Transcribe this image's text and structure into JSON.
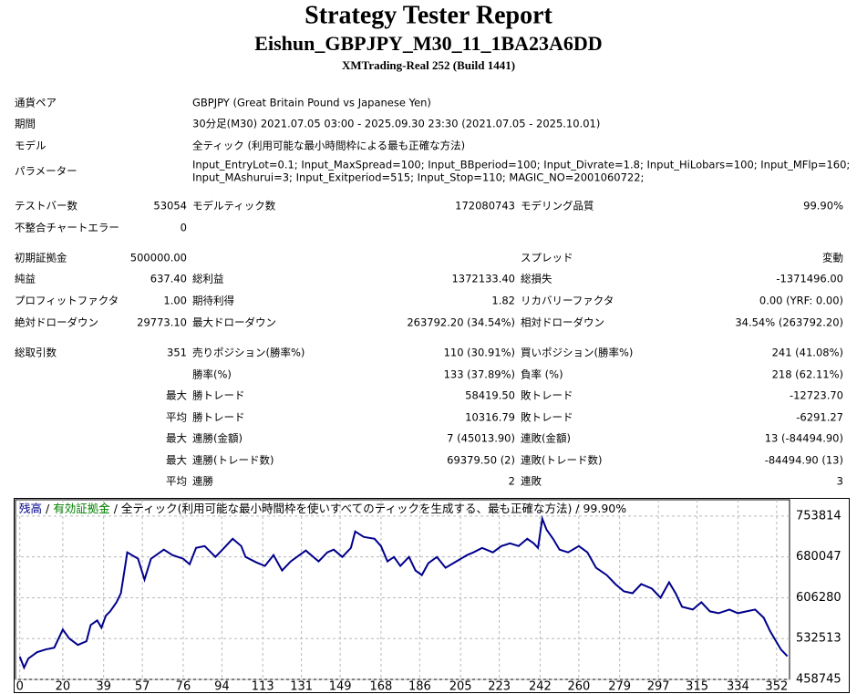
{
  "header": {
    "title": "Strategy Tester Report",
    "subtitle": "Eishun_GBPJPY_M30_11_1BA23A6DD",
    "server": "XMTrading-Real 252 (Build 1441)"
  },
  "info": [
    {
      "label": "通貨ペア",
      "value": [
        "GBPJPY (Great Britain Pound vs Japanese Yen)"
      ]
    },
    {
      "label": "期間",
      "value": [
        "30分足(M30) 2021.07.05 03:00 - 2025.09.30 23:30 (2021.07.05 - 2025.10.01)"
      ]
    },
    {
      "label": "モデル",
      "value": [
        "全ティック (利用可能な最小時間枠による最も正確な方法)"
      ]
    },
    {
      "label": "パラメーター",
      "value": [
        "Input_EntryLot=0.1; Input_MaxSpread=100; Input_BBperiod=100; Input_Divrate=1.8; Input_HiLobars=100; Input_MFlp=160;",
        "Input_MAshurui=3; Input_Exitperiod=515; Input_Stop=110; MAGIC_NO=2001060722;"
      ]
    }
  ],
  "stats": [
    [
      "テストバー数",
      "53054",
      "モデルティック数",
      "172080743",
      "モデリング品質",
      "99.90%"
    ],
    [
      "不整合チャートエラー",
      "0",
      null,
      null,
      null,
      null
    ],
    [
      "初期証拠金",
      "500000.00",
      null,
      null,
      "スプレッド",
      "変動"
    ],
    [
      "純益",
      "637.40",
      "総利益",
      "1372133.40",
      "総損失",
      "-1371496.00"
    ],
    [
      "プロフィットファクタ",
      "1.00",
      "期待利得",
      "1.82",
      "リカバリーファクタ",
      "0.00 (YRF: 0.00)"
    ],
    [
      "絶対ドローダウン",
      "29773.10",
      "最大ドローダウン",
      "263792.20 (34.54%)",
      "相対ドローダウン",
      "34.54% (263792.20)"
    ],
    [
      "総取引数",
      "351",
      "売りポジション(勝率%)",
      "110 (30.91%)",
      "買いポジション(勝率%)",
      "241 (41.08%)"
    ],
    [
      null,
      null,
      "勝率(%)",
      "133 (37.89%)",
      "負率 (%)",
      "218 (62.11%)"
    ],
    [
      null,
      "最大",
      "勝トレード",
      "58419.50",
      "敗トレード",
      "-12723.70"
    ],
    [
      null,
      "平均",
      "勝トレード",
      "10316.79",
      "敗トレード",
      "-6291.27"
    ],
    [
      null,
      "最大",
      "連勝(金額)",
      "7 (45013.90)",
      "連敗(金額)",
      "13 (-84494.90)"
    ],
    [
      null,
      "最大",
      "連勝(トレード数)",
      "69379.50 (2)",
      "連敗(トレード数)",
      "-84494.90 (13)"
    ],
    [
      null,
      "平均",
      "連勝",
      "2",
      "連敗",
      "3"
    ]
  ],
  "chart_data": {
    "type": "line",
    "x": [
      0,
      2,
      4,
      8,
      12,
      16,
      20,
      23,
      27,
      31,
      33,
      36,
      38,
      40,
      42,
      45,
      47,
      49,
      50,
      55,
      58,
      61,
      67,
      71,
      76,
      79,
      82,
      86,
      91,
      95,
      99,
      103,
      105,
      110,
      114,
      118,
      122,
      126,
      133,
      139,
      143,
      146,
      150,
      154,
      156,
      160,
      165,
      168,
      171,
      174,
      177,
      181,
      184,
      187,
      190,
      194,
      198,
      203,
      208,
      211,
      215,
      220,
      224,
      228,
      232,
      236,
      239,
      241,
      243,
      245,
      248,
      251,
      255,
      260,
      264,
      268,
      273,
      277,
      281,
      285,
      289,
      294,
      298,
      302,
      305,
      308,
      313,
      317,
      321,
      325,
      330,
      334,
      338,
      342,
      346,
      349,
      351,
      354,
      357
    ],
    "series": [
      {
        "name": "残高",
        "color": "#00008b",
        "values": [
          500000,
          480000,
          496400,
          507900,
          512800,
          516100,
          548900,
          532500,
          521000,
          527600,
          557100,
          565300,
          552200,
          573500,
          581700,
          598100,
          614500,
          663700,
          688200,
          676800,
          639100,
          676800,
          693200,
          683300,
          676800,
          666900,
          696400,
          699700,
          680000,
          696400,
          712800,
          699700,
          680000,
          670200,
          663700,
          683300,
          655500,
          671900,
          691500,
          671900,
          688200,
          693200,
          680000,
          696400,
          726000,
          716100,
          712800,
          699700,
          671900,
          680000,
          663700,
          680000,
          655500,
          647300,
          668600,
          680000,
          660400,
          671900,
          683300,
          688200,
          696400,
          688200,
          699700,
          704600,
          699700,
          712800,
          704600,
          696400,
          748900,
          729200,
          712800,
          693200,
          688200,
          699700,
          688200,
          660400,
          647300,
          630900,
          617800,
          614500,
          630900,
          622700,
          606300,
          634200,
          614500,
          589900,
          585000,
          598100,
          581700,
          578400,
          585000,
          578400,
          581700,
          585000,
          570200,
          545600,
          532500,
          512800,
          500600
        ]
      }
    ],
    "legend_extra": [
      {
        "text": "/",
        "color": "#000000"
      },
      {
        "text": "有効証拠金",
        "color": "#008000"
      },
      {
        "text": "/ 全ティック(利用可能な最小時間枠を使いすべてのティックを生成する、最も正確な方法) / 99.90%",
        "color": "#000000"
      }
    ],
    "xlim": [
      -2,
      358
    ],
    "xticks": [
      0,
      20,
      39,
      57,
      76,
      94,
      113,
      131,
      149,
      168,
      186,
      205,
      223,
      242,
      260,
      279,
      297,
      315,
      334,
      352
    ],
    "ylim": [
      458745,
      783321
    ],
    "yticks": [
      458745,
      532513,
      606280,
      680047,
      753814
    ],
    "grid": true
  }
}
